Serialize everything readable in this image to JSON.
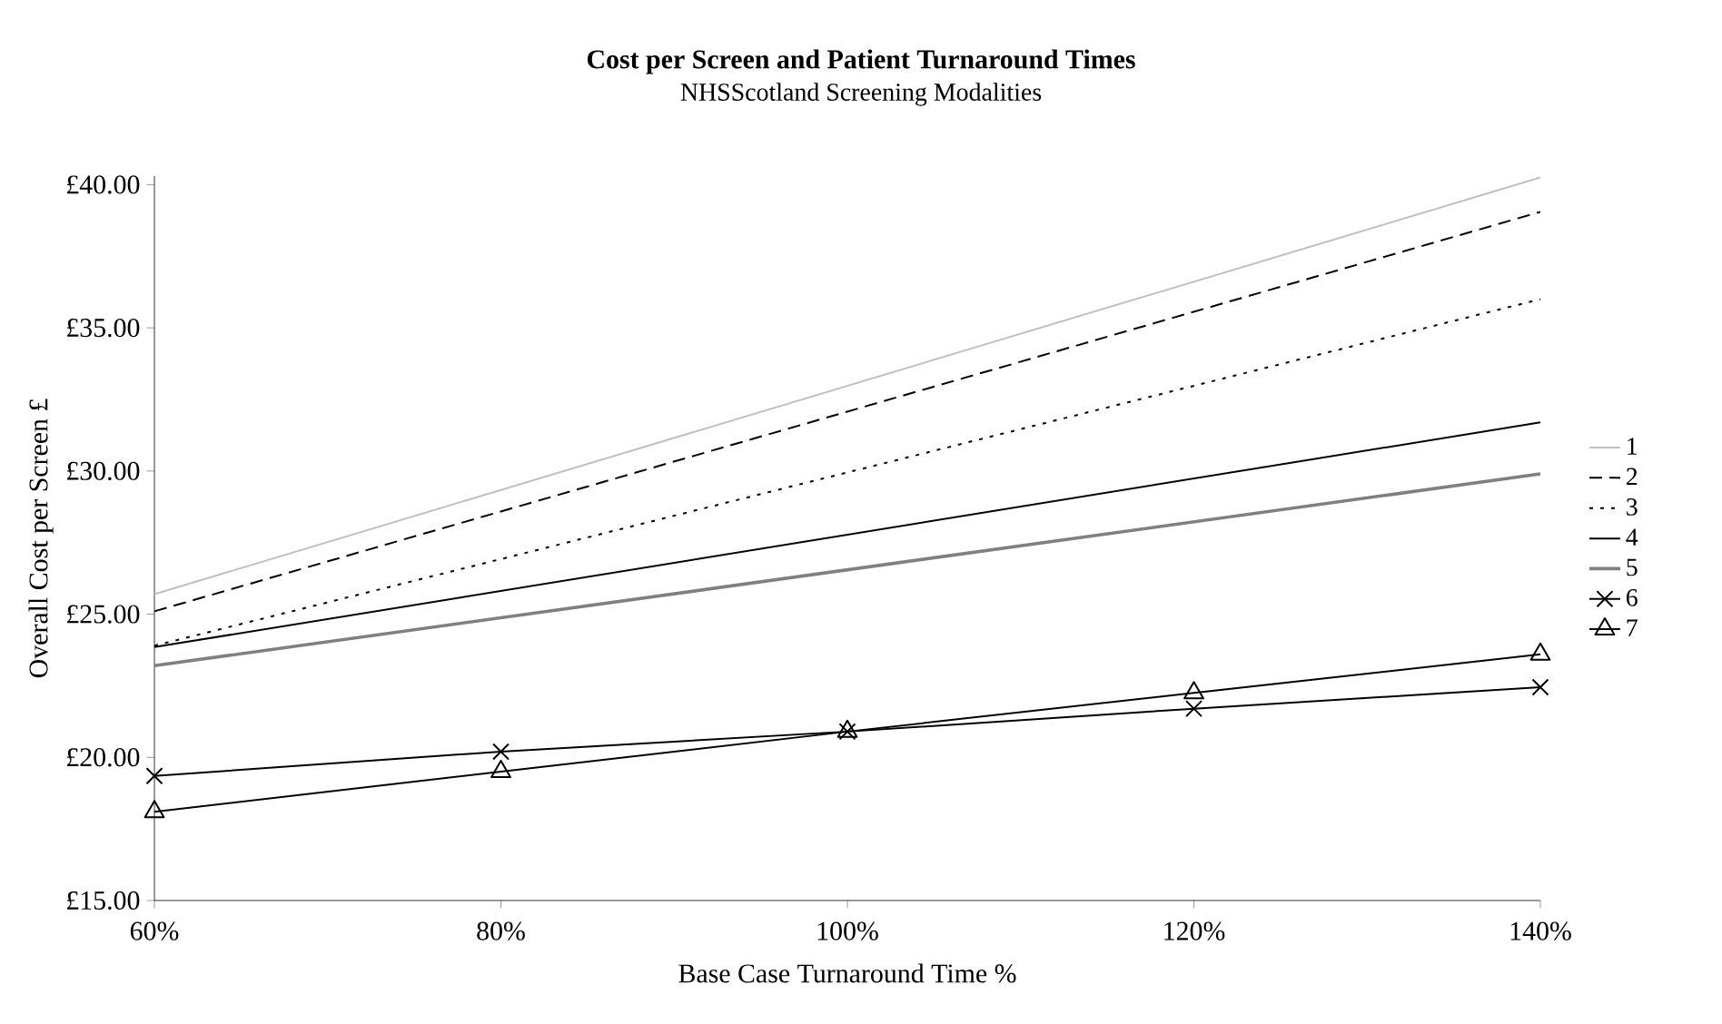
{
  "chart_data": {
    "type": "line",
    "title": "Cost per Screen and Patient Turnaround Times",
    "subtitle": "NHSScotland Screening Modalities",
    "xlabel": "Base Case Turnaround Time %",
    "ylabel": "Overall Cost per Screen £",
    "xlim": [
      60,
      140
    ],
    "xticks": [
      {
        "value": 60,
        "label": "60%"
      },
      {
        "value": 80,
        "label": "80%"
      },
      {
        "value": 100,
        "label": "100%"
      },
      {
        "value": 120,
        "label": "120%"
      },
      {
        "value": 140,
        "label": "140%"
      }
    ],
    "ylim": [
      15,
      40.3
    ],
    "yticks": [
      {
        "value": 15,
        "label": "£15.00"
      },
      {
        "value": 20,
        "label": "£20.00"
      },
      {
        "value": 25,
        "label": "£25.00"
      },
      {
        "value": 30,
        "label": "£30.00"
      },
      {
        "value": 35,
        "label": "£35.00"
      },
      {
        "value": 40,
        "label": "£40.00"
      }
    ],
    "grid": false,
    "legend": "right",
    "series": [
      {
        "name": "1",
        "color": "#c0c0c0",
        "x": [
          60,
          140
        ],
        "values": [
          25.7,
          40.25
        ],
        "line_style": "solid",
        "marker": "none"
      },
      {
        "name": "2",
        "color": "#000000",
        "x": [
          60,
          140
        ],
        "values": [
          25.1,
          39.05
        ],
        "line_style": "dashed",
        "marker": "none"
      },
      {
        "name": "3",
        "color": "#000000",
        "x": [
          60,
          140
        ],
        "values": [
          23.9,
          36.0
        ],
        "line_style": "dotted",
        "marker": "none"
      },
      {
        "name": "4",
        "color": "#000000",
        "x": [
          60,
          140
        ],
        "values": [
          23.85,
          31.7
        ],
        "line_style": "solid",
        "marker": "none"
      },
      {
        "name": "5",
        "color": "#808080",
        "x": [
          60,
          140
        ],
        "values": [
          23.2,
          29.9
        ],
        "line_style": "solid",
        "marker": "none"
      },
      {
        "name": "6",
        "color": "#000000",
        "x": [
          60,
          80,
          100,
          120,
          140
        ],
        "values": [
          19.35,
          20.2,
          20.9,
          21.7,
          22.45
        ],
        "line_style": "solid",
        "marker": "cross"
      },
      {
        "name": "7",
        "color": "#000000",
        "x": [
          60,
          80,
          100,
          120,
          140
        ],
        "values": [
          18.1,
          19.5,
          20.9,
          22.25,
          23.6
        ],
        "line_style": "solid",
        "marker": "triangle"
      }
    ]
  }
}
